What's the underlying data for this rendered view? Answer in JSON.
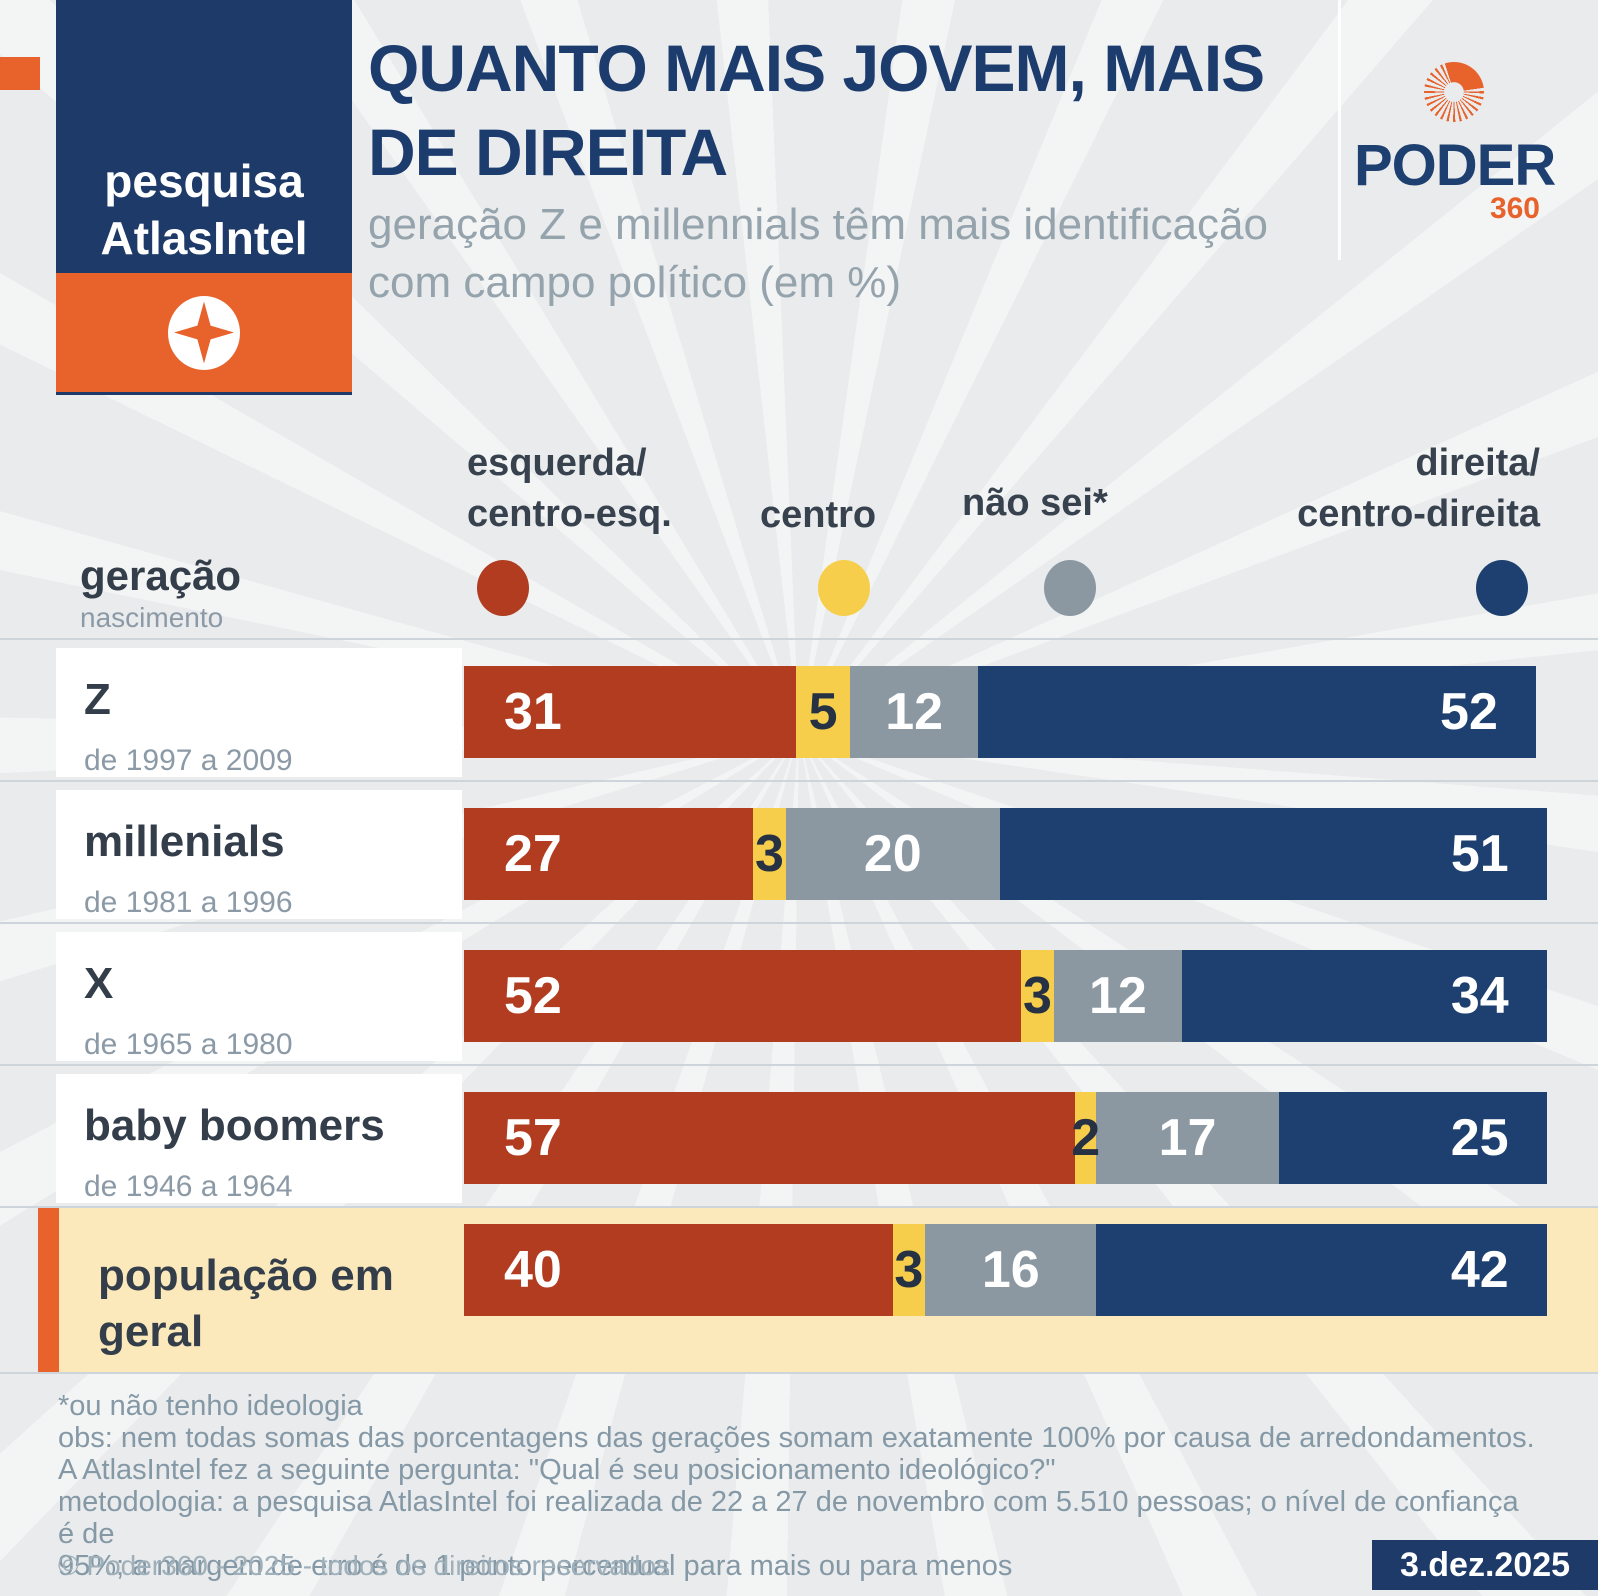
{
  "header": {
    "badge_line1": "pesquisa",
    "badge_line2": "AtlasIntel",
    "title_line1": "QUANTO MAIS JOVEM, MAIS",
    "title_line2": "DE DIREITA",
    "subtitle_line1": "geração Z e millennials têm mais identificação",
    "subtitle_line2": "com campo político (em %)",
    "logo_text": "PODER",
    "logo_suffix": "360"
  },
  "legend": {
    "axis_title": "geração",
    "axis_subtitle": "nascimento",
    "items": [
      {
        "line1": "esquerda/",
        "line2": "centro-esq.",
        "color": "#b13c20"
      },
      {
        "line1": "centro",
        "line2": "",
        "color": "#f6ce4b"
      },
      {
        "line1": "não sei*",
        "line2": "",
        "color": "#8b98a2"
      },
      {
        "line1": "direita/",
        "line2": "centro-direita",
        "color": "#1d4071"
      }
    ]
  },
  "chart_data": {
    "type": "bar",
    "orientation": "horizontal",
    "stacked": true,
    "unit": "%",
    "xlim": [
      0,
      100
    ],
    "series_names": [
      "esquerda/centro-esq.",
      "centro",
      "não sei*",
      "direita/centro-direita"
    ],
    "series_colors": [
      "#b13c20",
      "#f6ce4b",
      "#8b98a2",
      "#1d4071"
    ],
    "categories": [
      "Z",
      "millenials",
      "X",
      "baby boomers",
      "população em geral"
    ],
    "rows": [
      {
        "label": "Z",
        "sublabel": "de 1997 a 2009",
        "values": [
          31,
          5,
          12,
          52
        ],
        "highlight": false
      },
      {
        "label": "millenials",
        "sublabel": "de 1981 a 1996",
        "values": [
          27,
          3,
          20,
          51
        ],
        "highlight": false
      },
      {
        "label": "X",
        "sublabel": "de 1965 a 1980",
        "values": [
          52,
          3,
          12,
          34
        ],
        "highlight": false
      },
      {
        "label": "baby boomers",
        "sublabel": "de 1946 a 1964",
        "values": [
          57,
          2,
          17,
          25
        ],
        "highlight": false
      },
      {
        "label": "população em geral",
        "sublabel": "",
        "values": [
          40,
          3,
          16,
          42
        ],
        "highlight": true
      }
    ]
  },
  "footer": {
    "footnotes": [
      "*ou não tenho ideologia",
      "obs: nem todas somas das porcentagens das gerações somam exatamente 100% por causa de arredondamentos.",
      "A AtlasIntel fez a seguinte pergunta: \"Qual é seu posicionamento ideológico?\"",
      "metodologia: a pesquisa AtlasIntel foi realizada de 22 a 27 de novembro com 5.510 pessoas; o nível de confiança é de",
      "95%; a margem de erro é de 1 ponto percentual para mais ou para menos"
    ],
    "copyright": "© Poder360 - 2025 - todos os direitos reservados",
    "date_badge": "3.dez.2025"
  },
  "colors": {
    "background": "#e9ebec",
    "navy": "#1d3a69",
    "orange": "#e8622c",
    "cream": "#fbe9bc",
    "title": "#1d3c6e",
    "text_dark": "#333e4a",
    "text_muted": "#8b9aa6",
    "footnote": "#8498a6",
    "separator": "#cdd5da"
  }
}
